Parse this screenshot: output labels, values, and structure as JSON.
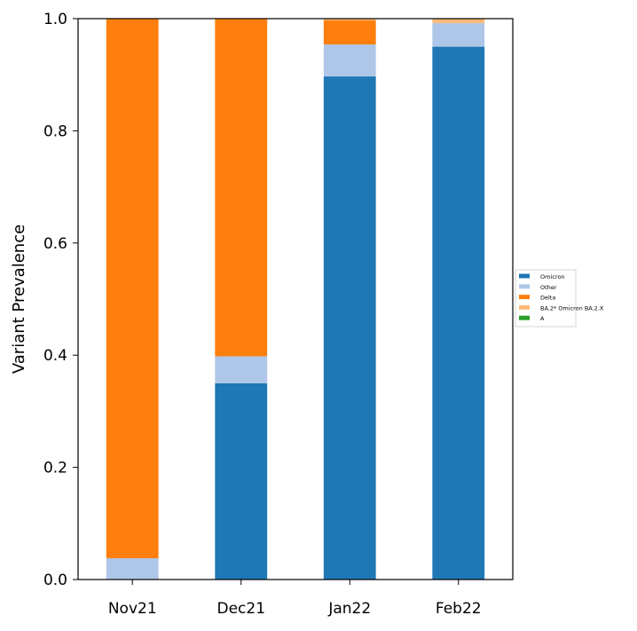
{
  "chart_data": {
    "type": "bar",
    "stacked": true,
    "title": "",
    "xlabel": "",
    "ylabel": "Variant Prevalence",
    "ylim": [
      0,
      1.0
    ],
    "yticks": [
      "0.0",
      "0.2",
      "0.4",
      "0.6",
      "0.8",
      "1.0"
    ],
    "grid": false,
    "legend_position": "right",
    "categories": [
      "Nov21",
      "Dec21",
      "Jan22",
      "Feb22"
    ],
    "series": [
      {
        "name": "Omicron",
        "color": "#1f77b4",
        "values": [
          0.0,
          0.35,
          0.897,
          0.95
        ]
      },
      {
        "name": "Other",
        "color": "#aec7e8",
        "values": [
          0.038,
          0.048,
          0.057,
          0.042
        ]
      },
      {
        "name": "Delta",
        "color": "#ff7f0e",
        "values": [
          0.962,
          0.602,
          0.043,
          0.0
        ]
      },
      {
        "name": "BA.2* Omicron BA.2.X",
        "color": "#ffbb78",
        "values": [
          0.0,
          0.0,
          0.003,
          0.008
        ]
      },
      {
        "name": "A",
        "color": "#2ca02c",
        "values": [
          0.0,
          0.0,
          0.0,
          0.0
        ]
      }
    ]
  }
}
